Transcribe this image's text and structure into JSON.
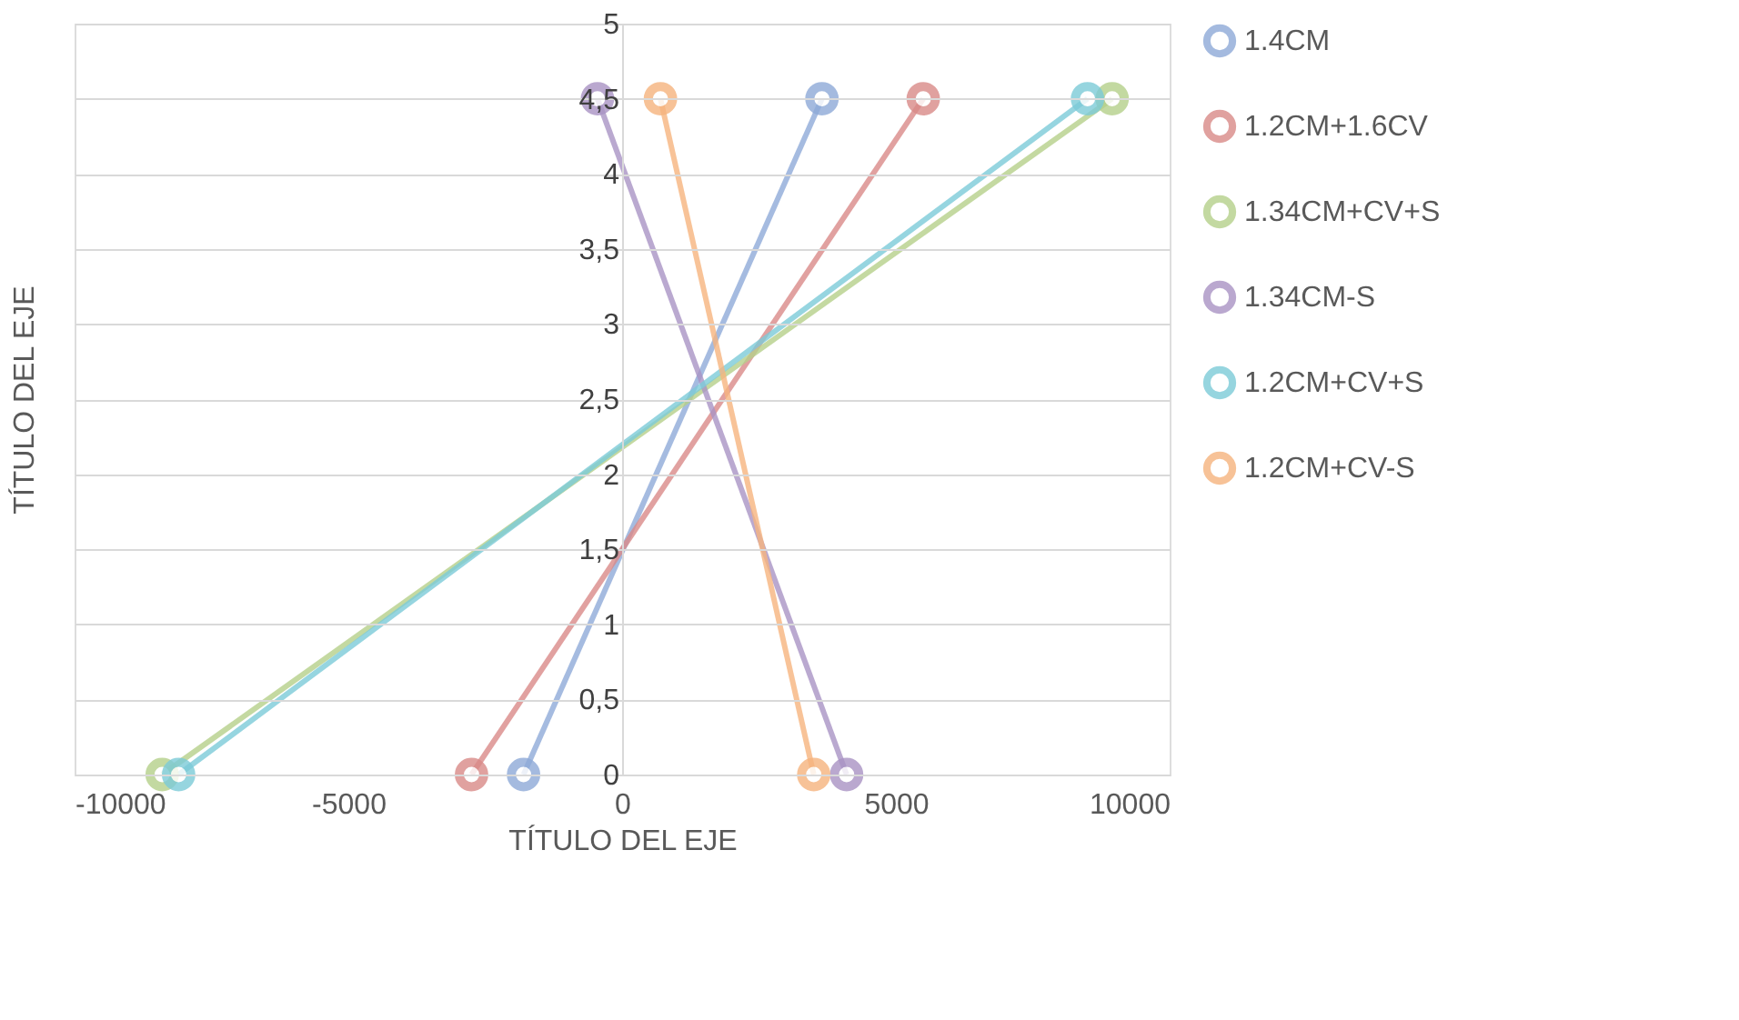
{
  "chart_data": {
    "type": "line",
    "xlabel": "TÍTULO DEL EJE",
    "ylabel": "TÍTULO DEL EJE",
    "xlim": [
      -10000,
      10000
    ],
    "xticks": [
      -10000,
      -5000,
      0,
      5000,
      10000
    ],
    "ylim": [
      0,
      5
    ],
    "yticks": [
      0,
      {
        "value": 0.5,
        "label": "0,5"
      },
      1,
      {
        "value": 1.5,
        "label": "1,5"
      },
      2,
      {
        "value": 2.5,
        "label": "2,5"
      },
      3,
      {
        "value": 3.5,
        "label": "3,5"
      },
      4,
      {
        "value": 4.5,
        "label": "4,5"
      },
      5
    ],
    "grid": "y",
    "legend": "right",
    "marker": "circle",
    "line_style": "solid",
    "series": [
      {
        "name": "1.4CM",
        "color": "#8eaad8",
        "x": [
          -1800,
          3650
        ],
        "values": [
          0,
          4.5
        ]
      },
      {
        "name": "1.2CM+1.6CV",
        "color": "#d98a88",
        "x": [
          -2750,
          5500
        ],
        "values": [
          0,
          4.5
        ]
      },
      {
        "name": "1.34CM+CV+S",
        "color": "#b5d08a",
        "x": [
          -8400,
          8950
        ],
        "values": [
          0,
          4.5
        ]
      },
      {
        "name": "1.34CM-S",
        "color": "#a993c4",
        "x": [
          -450,
          4100
        ],
        "values": [
          4.5,
          0
        ]
      },
      {
        "name": "1.2CM+CV+S",
        "color": "#7ccbd8",
        "x": [
          -8100,
          8500
        ],
        "values": [
          0,
          4.5
        ]
      },
      {
        "name": "1.2CM+CV-S",
        "color": "#f6b47e",
        "x": [
          700,
          3500
        ],
        "values": [
          4.5,
          0
        ]
      }
    ]
  }
}
